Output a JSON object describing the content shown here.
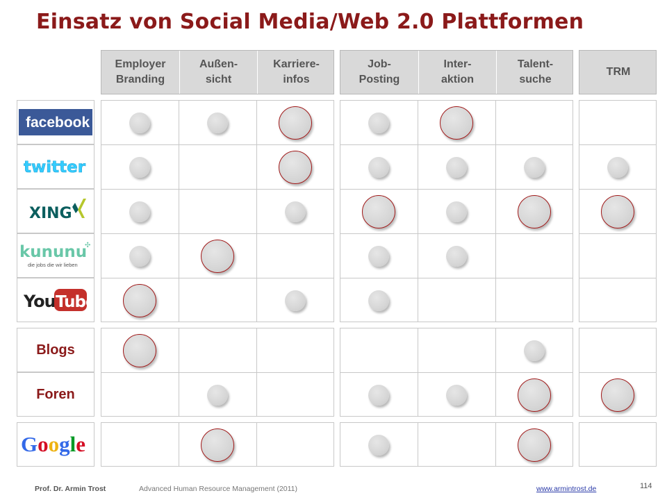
{
  "title": "Einsatz von Social Media/Web 2.0 Plattformen",
  "columns": [
    "Employer\nBranding",
    "Außen-\nsicht",
    "Karriere-\ninfos",
    "Job-\nPosting",
    "Inter-\naktion",
    "Talent-\nsuche",
    "TRM"
  ],
  "rows": [
    {
      "label": "facebook",
      "kind": "logo",
      "cells": [
        "small",
        "small",
        "big",
        "small",
        "big",
        "",
        ""
      ]
    },
    {
      "label": "twitter",
      "kind": "logo",
      "cells": [
        "small",
        "",
        "big",
        "small",
        "small",
        "small",
        "small"
      ]
    },
    {
      "label": "XING",
      "kind": "logo",
      "cells": [
        "small",
        "",
        "small",
        "big",
        "small",
        "big",
        "big"
      ]
    },
    {
      "label": "kununu",
      "sublabel": "die jobs die wir lieben",
      "kind": "logo",
      "cells": [
        "small",
        "big",
        "",
        "small",
        "small",
        "",
        ""
      ]
    },
    {
      "label": "YouTube",
      "kind": "logo",
      "cells": [
        "big",
        "",
        "small",
        "small",
        "",
        "",
        ""
      ]
    },
    {
      "label": "Blogs",
      "kind": "text",
      "cells": [
        "big",
        "",
        "",
        "",
        "",
        "small",
        ""
      ]
    },
    {
      "label": "Foren",
      "kind": "text",
      "cells": [
        "",
        "small",
        "",
        "small",
        "small",
        "big",
        "big"
      ]
    },
    {
      "label": "Google",
      "kind": "logo",
      "cells": [
        "",
        "big",
        "",
        "small",
        "",
        "big",
        ""
      ]
    }
  ],
  "footer": {
    "author": "Prof. Dr. Armin Trost",
    "course": "Advanced Human Resource Management (2011)",
    "url": "www.armintrost.de",
    "page": "114"
  },
  "colors": {
    "title": "#8b1a1a",
    "header_bg": "#d9d9d9",
    "dot_fill": "#d6d6d6",
    "dot_ring": "#a01818",
    "grid": "#c8c8c8"
  }
}
